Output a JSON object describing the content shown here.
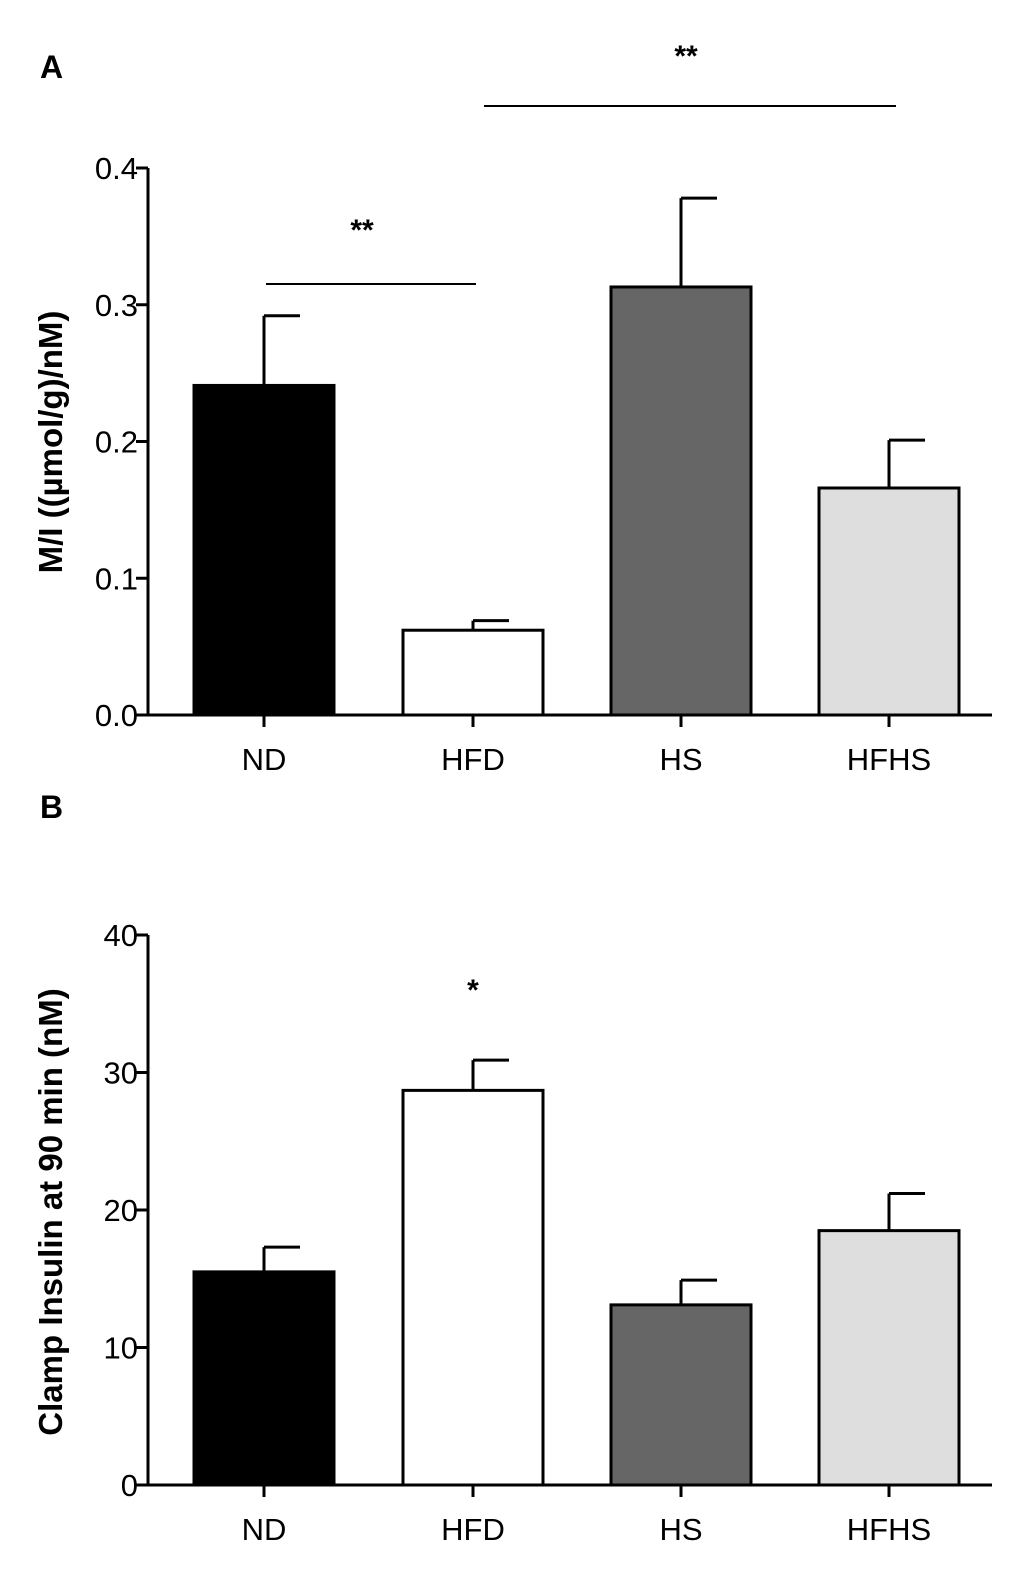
{
  "chart_data": [
    {
      "panel": "A",
      "type": "bar",
      "categories": [
        "ND",
        "HFD",
        "HS",
        "HFHS"
      ],
      "values": [
        0.241,
        0.062,
        0.313,
        0.166
      ],
      "errors": [
        0.051,
        0.007,
        0.065,
        0.035
      ],
      "colors": [
        "#000000",
        "#ffffff",
        "#666666",
        "#dedede"
      ],
      "ylabel": "M/I ((µmol/g)/nM)",
      "ylim": [
        0,
        0.4
      ],
      "yticks": [
        0.0,
        0.1,
        0.2,
        0.3,
        0.4
      ],
      "ytick_labels": [
        "0.0",
        "0.1",
        "0.2",
        "0.3",
        "0.4"
      ],
      "annotations": [
        {
          "text": "**",
          "from": "ND",
          "to": "HFD"
        },
        {
          "text": "**",
          "from": "HFD",
          "to": "HFHS"
        }
      ]
    },
    {
      "panel": "B",
      "type": "bar",
      "categories": [
        "ND",
        "HFD",
        "HS",
        "HFHS"
      ],
      "values": [
        15.5,
        28.7,
        13.1,
        18.5
      ],
      "errors": [
        1.8,
        2.2,
        1.8,
        2.7
      ],
      "colors": [
        "#000000",
        "#ffffff",
        "#666666",
        "#dedede"
      ],
      "ylabel": "Clamp Insulin at 90 min (nM)",
      "ylim": [
        0,
        40
      ],
      "yticks": [
        0,
        10,
        20,
        30,
        40
      ],
      "ytick_labels": [
        "0",
        "10",
        "20",
        "30",
        "40"
      ],
      "annotations": [
        {
          "text": "*",
          "over": "HFD"
        }
      ]
    }
  ]
}
